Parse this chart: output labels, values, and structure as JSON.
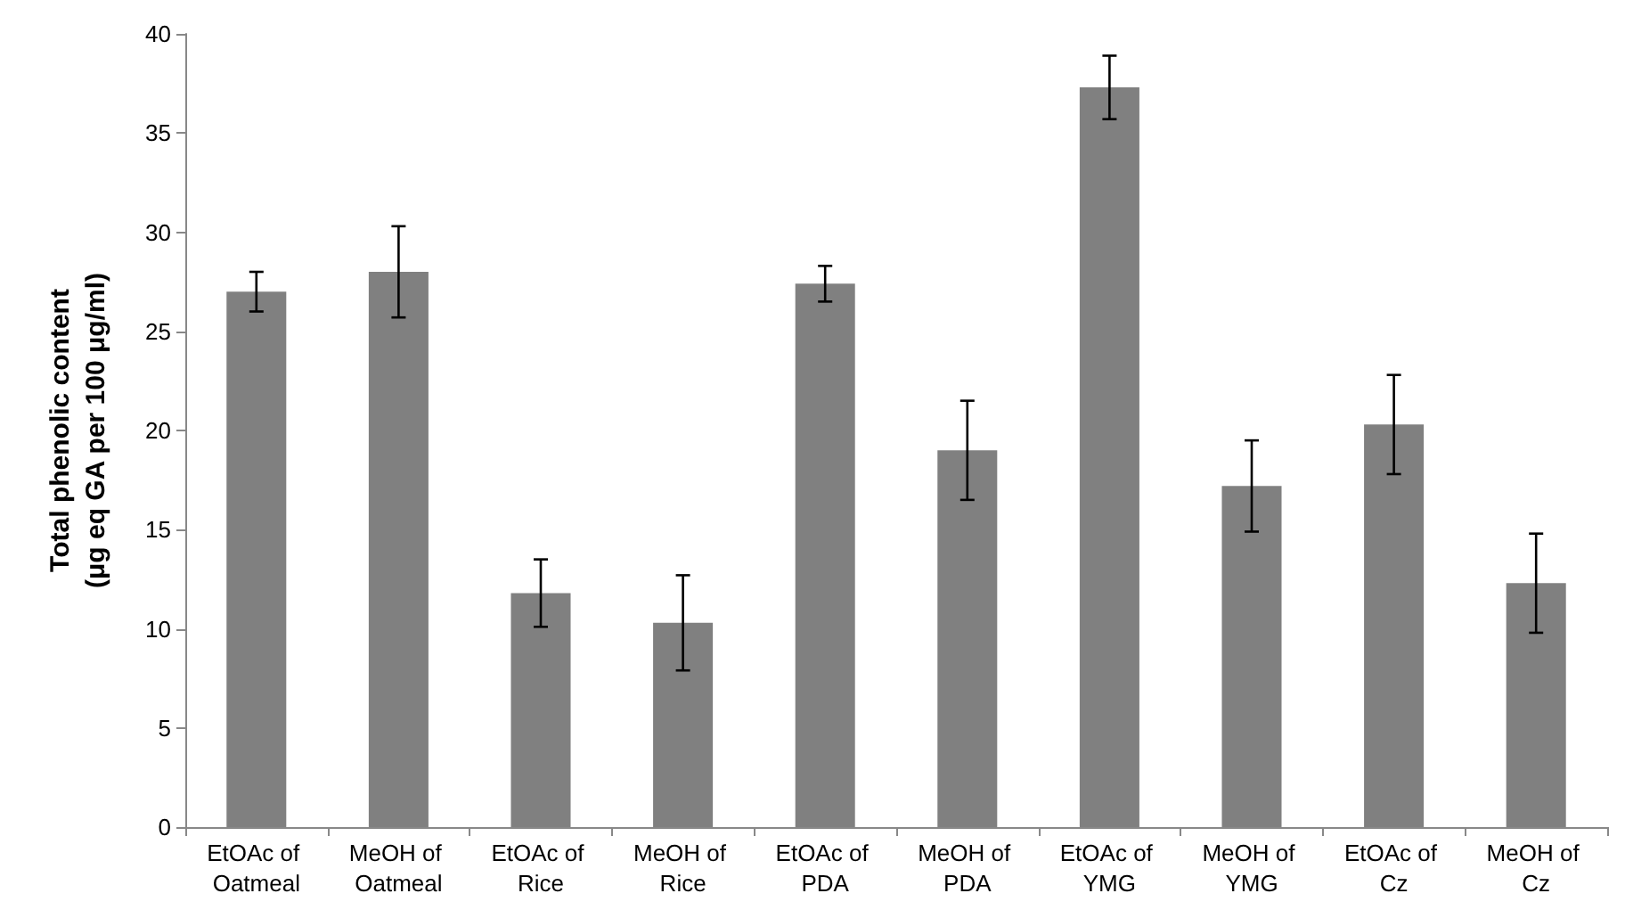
{
  "chart_data": {
    "type": "bar",
    "ylabel": "Total phenolic content\n(μg eq GA per 100 μg/ml)",
    "categories": [
      "EtOAc of Oatmeal",
      "MeOH of Oatmeal",
      "EtOAc of Rice",
      "MeOH of Rice",
      "EtOAc of PDA",
      "MeOH of PDA",
      "EtOAc of YMG",
      "MeOH of YMG",
      "EtOAc of Cz",
      "MeOH of Cz"
    ],
    "values": [
      27,
      28,
      11.8,
      10.3,
      27.4,
      19,
      37.3,
      17.2,
      20.3,
      12.3
    ],
    "errors": [
      1,
      2.3,
      1.7,
      2.4,
      0.9,
      2.5,
      1.6,
      2.3,
      2.5,
      2.5
    ],
    "color": "#808080",
    "ylim": [
      0,
      40
    ],
    "yticks": [
      0,
      5,
      10,
      15,
      20,
      25,
      30,
      35,
      40
    ],
    "grid": false
  }
}
